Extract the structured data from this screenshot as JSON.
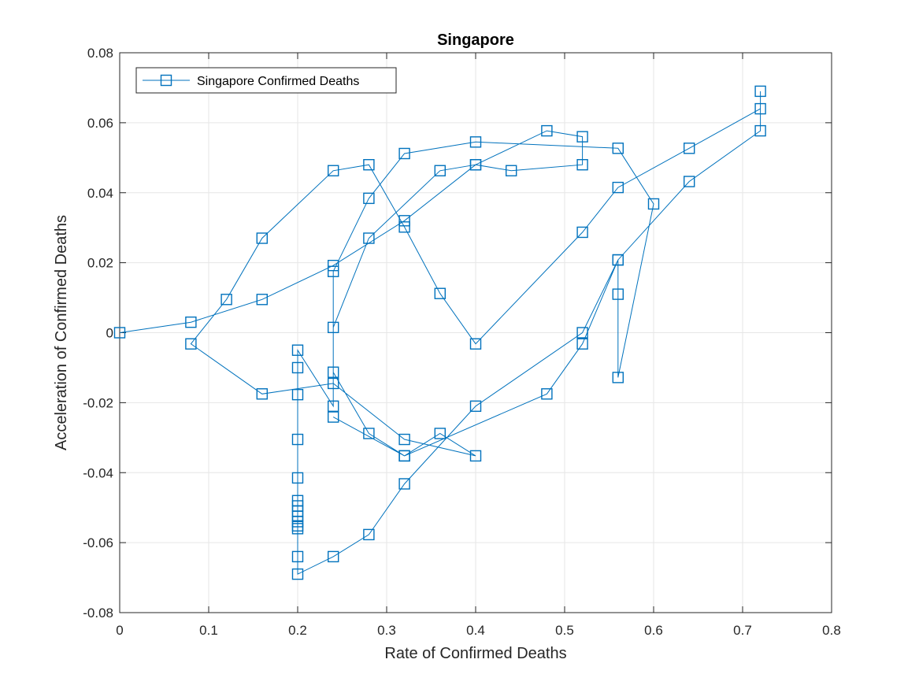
{
  "chart_data": {
    "type": "line",
    "title": "Singapore",
    "xlabel": "Rate of Confirmed Deaths",
    "ylabel": "Acceleration of Confirmed Deaths",
    "xlim": [
      0,
      0.8
    ],
    "ylim": [
      -0.08,
      0.08
    ],
    "xticks": [
      0,
      0.1,
      0.2,
      0.3,
      0.4,
      0.5,
      0.6,
      0.7,
      0.8
    ],
    "xtick_labels": [
      "0",
      "0.1",
      "0.2",
      "0.3",
      "0.4",
      "0.5",
      "0.6",
      "0.7",
      "0.8"
    ],
    "yticks": [
      -0.08,
      -0.06,
      -0.04,
      -0.02,
      0,
      0.02,
      0.04,
      0.06,
      0.08
    ],
    "ytick_labels": [
      "-0.08",
      "-0.06",
      "-0.04",
      "-0.02",
      "0",
      "0.02",
      "0.04",
      "0.06",
      "0.08"
    ],
    "grid": true,
    "legend_position": "top-left",
    "colors": {
      "series": "#0072bd"
    },
    "series": [
      {
        "name": "Singapore Confirmed Deaths",
        "marker": "square",
        "x": [
          0,
          0.08,
          0.16,
          0.24,
          0.32,
          0.4,
          0.44,
          0.52,
          0.52,
          0.48,
          0.4,
          0.36,
          0.28,
          0.24,
          0.24,
          0.2,
          0.2,
          0.2,
          0.2,
          0.2,
          0.2,
          0.2,
          0.2,
          0.2,
          0.2,
          0.2,
          0.2,
          0.2,
          0.2,
          0.24,
          0.28,
          0.32,
          0.4,
          0.52,
          0.56,
          0.56,
          0.56,
          0.6,
          0.56,
          0.4,
          0.32,
          0.28,
          0.24,
          0.24,
          0.28,
          0.32,
          0.36,
          0.4,
          0.32,
          0.24,
          0.16,
          0.08,
          0.12,
          0.16,
          0.24,
          0.28,
          0.32,
          0.36,
          0.4,
          0.52,
          0.56,
          0.64,
          0.72,
          0.72,
          0.72,
          0.64,
          0.56,
          0.52,
          0.48,
          0.32,
          0.24
        ],
        "y": [
          0,
          0.003,
          0.0095,
          0.0192,
          0.032,
          0.048,
          0.0463,
          0.048,
          0.056,
          0.0577,
          0.048,
          0.0463,
          0.027,
          0.0015,
          -0.021,
          -0.005,
          -0.01,
          -0.0177,
          -0.0305,
          -0.0415,
          -0.048,
          -0.0495,
          -0.051,
          -0.0525,
          -0.054,
          -0.0552,
          -0.056,
          -0.064,
          -0.069,
          -0.064,
          -0.0577,
          -0.0432,
          -0.021,
          0,
          0.0208,
          0.011,
          -0.0128,
          0.0368,
          0.0527,
          0.0545,
          0.0512,
          0.0384,
          0.0175,
          -0.0113,
          -0.0288,
          -0.0352,
          -0.0288,
          -0.0352,
          -0.0305,
          -0.0145,
          -0.0175,
          -0.0032,
          0.0095,
          0.027,
          0.0463,
          0.048,
          0.0302,
          0.0112,
          -0.0032,
          0.0287,
          0.0415,
          0.0527,
          0.064,
          0.069,
          0.0577,
          0.0432,
          0.0208,
          -0.0032,
          -0.0175,
          -0.0352,
          -0.0241
        ]
      }
    ]
  }
}
